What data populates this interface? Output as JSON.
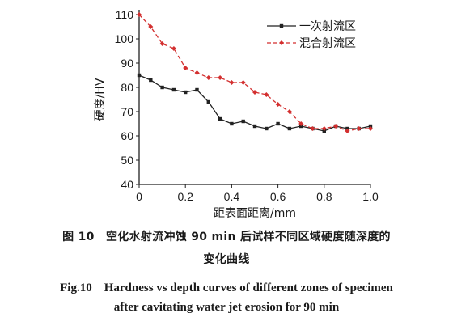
{
  "chart_data": {
    "type": "line",
    "xlabel": "距表面距离/mm",
    "ylabel": "硬度/HV",
    "xlim": [
      0,
      1.0
    ],
    "ylim": [
      40,
      110
    ],
    "xticks": [
      "0",
      "0.2",
      "0.4",
      "0.6",
      "0.8",
      "1.0"
    ],
    "yticks": [
      "40",
      "50",
      "60",
      "70",
      "80",
      "90",
      "100",
      "110"
    ],
    "legend_position": "top-right",
    "series": [
      {
        "name": "一次射流区",
        "color": "#222222",
        "marker": "square",
        "line": "solid",
        "x": [
          0,
          0.05,
          0.1,
          0.15,
          0.2,
          0.25,
          0.3,
          0.35,
          0.4,
          0.45,
          0.5,
          0.55,
          0.6,
          0.65,
          0.7,
          0.75,
          0.8,
          0.85,
          0.9,
          0.95,
          1.0
        ],
        "y": [
          85,
          83,
          80,
          79,
          78,
          79,
          74,
          67,
          65,
          66,
          64,
          63,
          65,
          63,
          64,
          63,
          62,
          64,
          63,
          63,
          64
        ]
      },
      {
        "name": "混合射流区",
        "color": "#d32f2f",
        "marker": "diamond",
        "line": "dashed",
        "x": [
          0,
          0.05,
          0.1,
          0.15,
          0.2,
          0.25,
          0.3,
          0.35,
          0.4,
          0.45,
          0.5,
          0.55,
          0.6,
          0.65,
          0.7,
          0.75,
          0.8,
          0.85,
          0.9,
          0.95,
          1.0
        ],
        "y": [
          110,
          105,
          98,
          96,
          88,
          86,
          84,
          84,
          82,
          82,
          78,
          77,
          73,
          70,
          65,
          63,
          63,
          64,
          62,
          63,
          63
        ]
      }
    ]
  },
  "caption": {
    "zh_line1": "图 10　空化水射流冲蚀 90 min 后试样不同区域硬度随深度的",
    "zh_line2": "变化曲线",
    "en_line1": "Fig.10　Hardness vs depth curves of different zones of specimen",
    "en_line2": "after cavitating water jet erosion for 90 min"
  }
}
